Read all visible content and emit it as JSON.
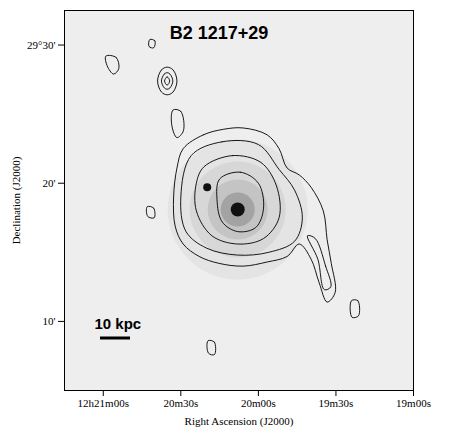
{
  "chart_data": {
    "type": "contour",
    "title": "B2 1217+29",
    "x_label": "Right Ascension (J2000)",
    "y_label": "Declination (J2000)",
    "xlim": [
      1275,
      1140
    ],
    "ylim": [
      5,
      32.5
    ],
    "xticks": [
      {
        "value": 1260,
        "label": "12h21m00s"
      },
      {
        "value": 1230,
        "label": "20m30s"
      },
      {
        "value": 1200,
        "label": "20m00s"
      },
      {
        "value": 1170,
        "label": "19m30s"
      },
      {
        "value": 1140,
        "label": "19m00s"
      }
    ],
    "yticks": [
      {
        "value": 30,
        "label": "29°30'"
      },
      {
        "value": 20,
        "label": "20'"
      },
      {
        "value": 10,
        "label": "10'"
      }
    ],
    "annotations": [
      "10 kpc"
    ],
    "color": "#000000",
    "optical_sources": [
      [
        1208,
        18.1
      ],
      [
        1219.8,
        19.7
      ]
    ],
    "contours": [
      [
        [
          1229.1,
          22.5
        ],
        [
          1221.3,
          23.5
        ],
        [
          1213.6,
          23.9
        ],
        [
          1205.9,
          24.0
        ],
        [
          1196.6,
          23.5
        ],
        [
          1192.0,
          22.5
        ],
        [
          1188.9,
          21.1
        ],
        [
          1184.2,
          20.6
        ],
        [
          1179.6,
          19.7
        ],
        [
          1174.9,
          18.0
        ],
        [
          1173.4,
          15.9
        ],
        [
          1171.8,
          14.2
        ],
        [
          1170.3,
          12.1
        ],
        [
          1173.4,
          11.4
        ],
        [
          1176.5,
          12.8
        ],
        [
          1179.6,
          14.5
        ],
        [
          1184.2,
          15.6
        ],
        [
          1188.9,
          14.7
        ],
        [
          1196.6,
          14.3
        ],
        [
          1205.9,
          14.0
        ],
        [
          1215.2,
          14.2
        ],
        [
          1222.9,
          14.7
        ],
        [
          1229.1,
          15.6
        ],
        [
          1232.2,
          16.9
        ],
        [
          1232.8,
          19.0
        ],
        [
          1231.5,
          21.1
        ]
      ],
      [
        [
          1226,
          22.0
        ],
        [
          1214,
          23.0
        ],
        [
          1200,
          22.8
        ],
        [
          1192,
          21.0
        ],
        [
          1186,
          19.5
        ],
        [
          1183,
          17.5
        ],
        [
          1186,
          15.8
        ],
        [
          1196,
          15.0
        ],
        [
          1208,
          14.8
        ],
        [
          1220,
          15.3
        ],
        [
          1228,
          16.5
        ],
        [
          1230,
          19.0
        ]
      ],
      [
        [
          1221,
          21.2
        ],
        [
          1210,
          22.0
        ],
        [
          1199,
          21.5
        ],
        [
          1193,
          19.8
        ],
        [
          1192,
          17.5
        ],
        [
          1198,
          16.0
        ],
        [
          1208,
          15.6
        ],
        [
          1218,
          16.2
        ],
        [
          1224,
          18.0
        ],
        [
          1224,
          20.0
        ]
      ],
      [
        [
          1215,
          20.3
        ],
        [
          1207,
          20.8
        ],
        [
          1200,
          20.0
        ],
        [
          1198,
          18.2
        ],
        [
          1201,
          16.8
        ],
        [
          1208,
          16.5
        ],
        [
          1214,
          17.2
        ],
        [
          1216,
          18.8
        ]
      ],
      [
        [
          1178,
          16
        ],
        [
          1174,
          14
        ],
        [
          1172,
          12.5
        ],
        [
          1174.5,
          12.3
        ],
        [
          1177,
          14.5
        ],
        [
          1181,
          16.2
        ]
      ],
      [
        [
          1239,
          27.4
        ],
        [
          1237.5,
          28.2
        ],
        [
          1235.3,
          28.4
        ],
        [
          1233,
          28.2
        ],
        [
          1231.5,
          27.4
        ],
        [
          1233,
          26.6
        ],
        [
          1235.3,
          26.4
        ],
        [
          1237.5,
          26.6
        ]
      ],
      [
        [
          1237.5,
          27.4
        ],
        [
          1236.4,
          27.9
        ],
        [
          1235.3,
          28.0
        ],
        [
          1234.2,
          27.9
        ],
        [
          1233.1,
          27.4
        ],
        [
          1234.2,
          26.9
        ],
        [
          1235.3,
          26.8
        ],
        [
          1236.4,
          26.9
        ]
      ],
      [
        [
          1236.3,
          27.4
        ],
        [
          1235.3,
          27.7
        ],
        [
          1234.3,
          27.4
        ],
        [
          1235.3,
          27.1
        ]
      ],
      [
        [
          1259,
          29.2
        ],
        [
          1255,
          29.1
        ],
        [
          1254,
          28.3
        ],
        [
          1256,
          27.9
        ],
        [
          1258.5,
          28.5
        ]
      ],
      [
        [
          1242,
          30.4
        ],
        [
          1240,
          30.3
        ],
        [
          1240.5,
          29.8
        ],
        [
          1242.3,
          29.9
        ]
      ],
      [
        [
          1233,
          25.3
        ],
        [
          1230,
          25.2
        ],
        [
          1229,
          23.8
        ],
        [
          1231.5,
          23.3
        ],
        [
          1233.5,
          24.2
        ]
      ],
      [
        [
          1243,
          18.3
        ],
        [
          1240.5,
          18.2
        ],
        [
          1240.3,
          17.5
        ],
        [
          1242.8,
          17.6
        ]
      ],
      [
        [
          1219.5,
          8.6
        ],
        [
          1217,
          8.5
        ],
        [
          1217,
          7.6
        ],
        [
          1219.3,
          7.7
        ]
      ],
      [
        [
          1164,
          11.5
        ],
        [
          1161.5,
          11.5
        ],
        [
          1161.3,
          10.4
        ],
        [
          1163.8,
          10.3
        ]
      ]
    ]
  }
}
